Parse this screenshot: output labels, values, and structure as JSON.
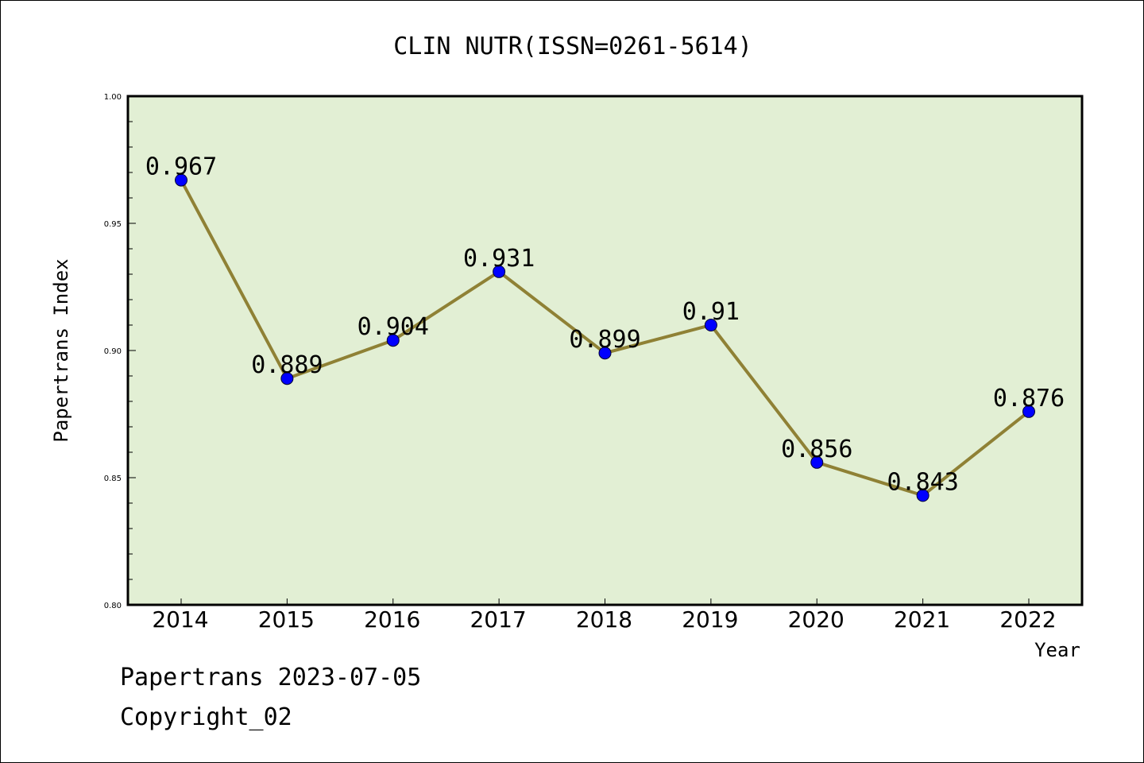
{
  "chart_data": {
    "type": "line",
    "title": "CLIN NUTR(ISSN=0261-5614)",
    "xlabel": "Year",
    "ylabel": "Papertrans Index",
    "categories": [
      "2014",
      "2015",
      "2016",
      "2017",
      "2018",
      "2019",
      "2020",
      "2021",
      "2022"
    ],
    "series": [
      {
        "values": [
          0.967,
          0.889,
          0.904,
          0.931,
          0.899,
          0.91,
          0.856,
          0.843,
          0.876
        ],
        "data_labels": [
          "0.967",
          "0.889",
          "0.904",
          "0.931",
          "0.899",
          "0.91",
          "0.856",
          "0.843",
          "0.876"
        ]
      }
    ],
    "ylim": [
      0.8,
      1.0
    ],
    "yticks": [
      "0.80",
      "0.85",
      "0.90",
      "0.95",
      "1.00"
    ],
    "grid": false,
    "colors": {
      "plot_background": "#e2efd4",
      "line": "#8f8135",
      "marker": "#0000ff"
    }
  },
  "footer": {
    "line1": "Papertrans 2023-07-05",
    "line2": "Copyright_02"
  }
}
